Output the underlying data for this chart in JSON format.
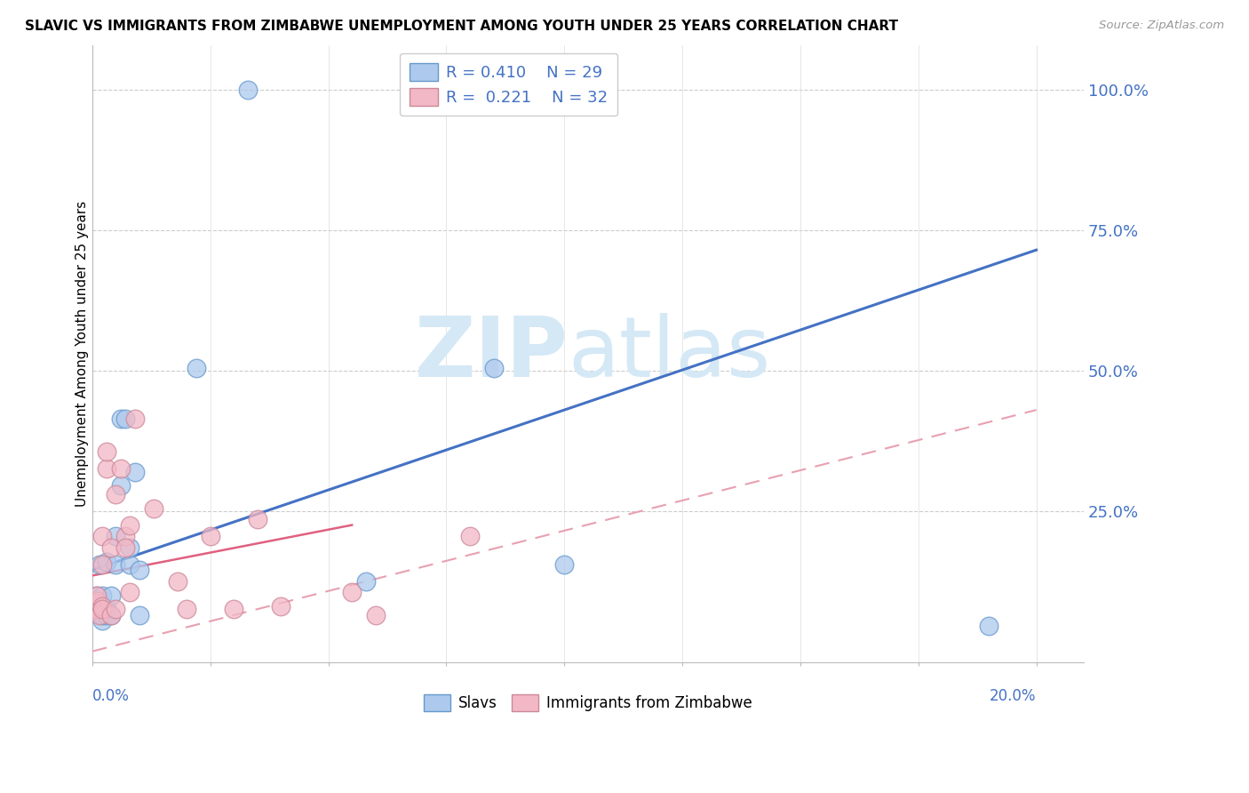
{
  "title": "SLAVIC VS IMMIGRANTS FROM ZIMBABWE UNEMPLOYMENT AMONG YOUTH UNDER 25 YEARS CORRELATION CHART",
  "source": "Source: ZipAtlas.com",
  "ylabel": "Unemployment Among Youth under 25 years",
  "xlim": [
    0.0,
    0.21
  ],
  "ylim": [
    -0.02,
    1.08
  ],
  "legend_slav_R": "0.410",
  "legend_slav_N": "29",
  "legend_zimb_R": "0.221",
  "legend_zimb_N": "32",
  "slav_color": "#adc9ed",
  "zimb_color": "#f2b8c6",
  "slav_edge_color": "#6699cc",
  "zimb_edge_color": "#cc8899",
  "slav_line_color": "#4472c4",
  "zimb_solid_color": "#e06080",
  "zimb_dash_color": "#e8a0b0",
  "watermark_color": "#d5e8f5",
  "slav_x": [
    0.0005,
    0.001,
    0.001,
    0.001,
    0.0015,
    0.002,
    0.002,
    0.002,
    0.003,
    0.003,
    0.003,
    0.004,
    0.004,
    0.005,
    0.005,
    0.006,
    0.006,
    0.007,
    0.008,
    0.008,
    0.009,
    0.01,
    0.01,
    0.022,
    0.033,
    0.058,
    0.085,
    0.1,
    0.19
  ],
  "slav_y": [
    0.08,
    0.085,
    0.09,
    0.1,
    0.155,
    0.055,
    0.065,
    0.1,
    0.065,
    0.075,
    0.16,
    0.065,
    0.1,
    0.205,
    0.155,
    0.295,
    0.415,
    0.415,
    0.155,
    0.185,
    0.32,
    0.145,
    0.065,
    0.505,
    1.0,
    0.125,
    0.505,
    0.155,
    0.045
  ],
  "zimb_x": [
    0.0005,
    0.001,
    0.001,
    0.001,
    0.001,
    0.0015,
    0.002,
    0.002,
    0.002,
    0.002,
    0.003,
    0.003,
    0.004,
    0.004,
    0.005,
    0.005,
    0.006,
    0.007,
    0.007,
    0.008,
    0.008,
    0.009,
    0.013,
    0.018,
    0.02,
    0.025,
    0.03,
    0.035,
    0.04,
    0.055,
    0.06,
    0.08
  ],
  "zimb_y": [
    0.075,
    0.085,
    0.075,
    0.09,
    0.1,
    0.065,
    0.08,
    0.075,
    0.155,
    0.205,
    0.325,
    0.355,
    0.185,
    0.065,
    0.075,
    0.28,
    0.325,
    0.205,
    0.185,
    0.225,
    0.105,
    0.415,
    0.255,
    0.125,
    0.075,
    0.205,
    0.075,
    0.235,
    0.08,
    0.105,
    0.065,
    0.205
  ],
  "slav_line": [
    0.0,
    0.145,
    0.2,
    0.715
  ],
  "zimb_solid_line": [
    0.0,
    0.135,
    0.055,
    0.225
  ],
  "zimb_dash_line": [
    0.0,
    0.0,
    0.2,
    0.43
  ],
  "ytick_vals": [
    0.25,
    0.5,
    0.75,
    1.0
  ],
  "ytick_labels": [
    "25.0%",
    "50.0%",
    "75.0%",
    "100.0%"
  ],
  "xtick_positions": [
    0.0,
    0.025,
    0.05,
    0.075,
    0.1,
    0.125,
    0.15,
    0.175,
    0.2
  ],
  "grid_color": "#cccccc",
  "vgrid_color": "#dddddd"
}
